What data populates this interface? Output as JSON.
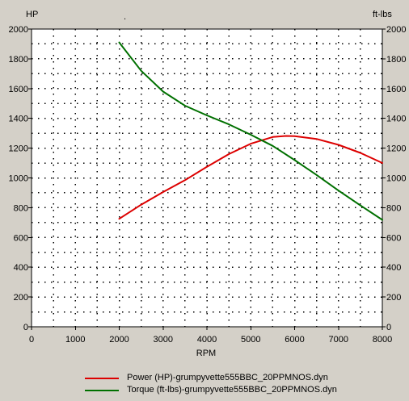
{
  "chart_data": {
    "type": "line",
    "title": ".",
    "xlabel": "RPM",
    "ylabel_left": "HP",
    "ylabel_right": "ft-lbs",
    "xlim": [
      0,
      8000
    ],
    "ylim": [
      0,
      2000
    ],
    "xticks": [
      0,
      1000,
      2000,
      3000,
      4000,
      5000,
      6000,
      7000,
      8000
    ],
    "yticks": [
      0,
      200,
      400,
      600,
      800,
      1000,
      1200,
      1400,
      1600,
      1800,
      2000
    ],
    "grid": true,
    "legend_position": "bottom",
    "series": [
      {
        "name": "Power (HP)-grumpyvette555BBC_20PPMNOS.dyn",
        "color": "#dd0000",
        "axis": "left",
        "x": [
          2000,
          2500,
          3000,
          3500,
          4000,
          4500,
          5000,
          5500,
          5800,
          6000,
          6500,
          7000,
          7500,
          8000
        ],
        "y": [
          725,
          820,
          905,
          985,
          1075,
          1160,
          1230,
          1275,
          1282,
          1280,
          1262,
          1222,
          1168,
          1100
        ]
      },
      {
        "name": "Torque (ft-lbs)-grumpyvette555BBC_20PPMNOS.dyn",
        "color": "#007000",
        "axis": "right",
        "x": [
          2000,
          2500,
          3000,
          3500,
          4000,
          4500,
          5000,
          5500,
          6000,
          6500,
          7000,
          7500,
          8000
        ],
        "y": [
          1910,
          1720,
          1580,
          1485,
          1420,
          1360,
          1290,
          1215,
          1120,
          1020,
          915,
          815,
          718
        ]
      }
    ]
  }
}
